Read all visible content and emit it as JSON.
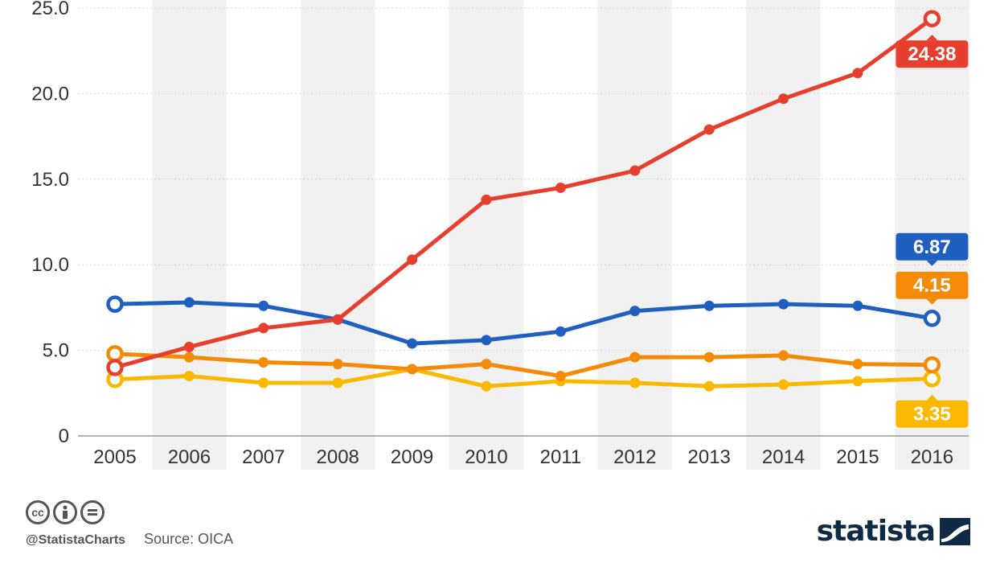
{
  "chart_data": {
    "type": "line",
    "categories": [
      "2005",
      "2006",
      "2007",
      "2008",
      "2009",
      "2010",
      "2011",
      "2012",
      "2013",
      "2014",
      "2015",
      "2016"
    ],
    "y_ticks": [
      "0",
      "5.0",
      "10.0",
      "15.0",
      "20.0",
      "25.0"
    ],
    "ylim": [
      0,
      25
    ],
    "grid": true,
    "series": [
      {
        "color": "#e63f2e",
        "values": [
          4.0,
          5.2,
          6.3,
          6.8,
          10.3,
          13.8,
          14.5,
          15.5,
          17.9,
          19.7,
          21.2,
          24.38
        ],
        "end_label": "24.38",
        "label_pos": "below"
      },
      {
        "color": "#1f5fbf",
        "values": [
          7.7,
          7.8,
          7.6,
          6.8,
          5.4,
          5.6,
          6.1,
          7.3,
          7.6,
          7.7,
          7.6,
          6.87
        ],
        "end_label": "6.87",
        "label_pos": "above"
      },
      {
        "color": "#f58a07",
        "values": [
          4.8,
          4.6,
          4.3,
          4.2,
          3.9,
          4.2,
          3.5,
          4.6,
          4.6,
          4.7,
          4.2,
          4.15
        ],
        "end_label": "4.15",
        "label_pos": "above-mid"
      },
      {
        "color": "#fbb800",
        "values": [
          3.3,
          3.5,
          3.1,
          3.1,
          3.9,
          2.9,
          3.2,
          3.1,
          2.9,
          3.0,
          3.2,
          3.35
        ],
        "end_label": "3.35",
        "label_pos": "below"
      }
    ]
  },
  "footer": {
    "handle": "@StatistaCharts",
    "source": "Source: OICA",
    "cc_icons": [
      "cc-icon",
      "by-icon",
      "nd-icon"
    ],
    "cc_text": "cc",
    "brand": "statista"
  }
}
